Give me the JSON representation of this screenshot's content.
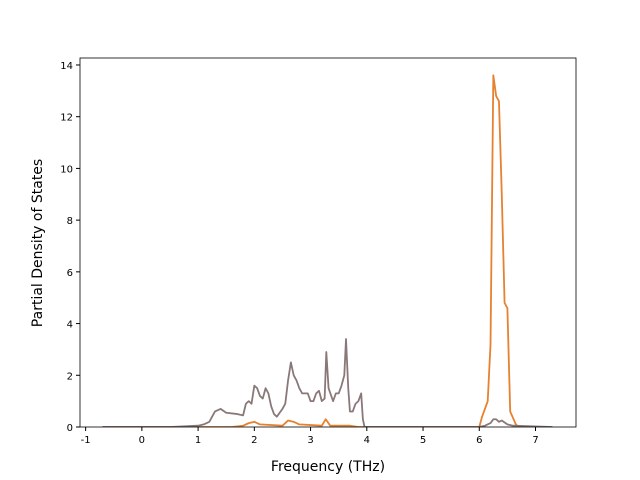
{
  "chart_data": {
    "type": "line",
    "xlabel": "Frequency (THz)",
    "ylabel": "Partial Density of States",
    "xlim": [
      -1.1,
      7.72
    ],
    "ylim": [
      0,
      14.27
    ],
    "xticks": [
      -1,
      0,
      1,
      2,
      3,
      4,
      5,
      6,
      7
    ],
    "yticks": [
      0,
      2,
      4,
      6,
      8,
      10,
      12,
      14
    ],
    "series": [
      {
        "color": "#e6812f",
        "x": [
          -0.7,
          1.6,
          1.8,
          1.9,
          2.0,
          2.1,
          2.5,
          2.6,
          2.7,
          2.8,
          3.2,
          3.27,
          3.35,
          3.7,
          3.85,
          6.0,
          6.05,
          6.15,
          6.2,
          6.25,
          6.3,
          6.35,
          6.4,
          6.45,
          6.5,
          6.55,
          6.65,
          6.7,
          7.3
        ],
        "values": [
          0,
          0,
          0.05,
          0.15,
          0.2,
          0.1,
          0.05,
          0.25,
          0.2,
          0.1,
          0.05,
          0.3,
          0.05,
          0.05,
          0,
          0,
          0.4,
          1,
          3.2,
          13.6,
          12.8,
          12.6,
          9,
          4.8,
          4.6,
          0.6,
          0.1,
          0,
          0
        ]
      },
      {
        "color": "#8a7878",
        "x": [
          -0.7,
          0.5,
          1.0,
          1.1,
          1.2,
          1.3,
          1.4,
          1.5,
          1.7,
          1.8,
          1.85,
          1.9,
          1.95,
          2.0,
          2.05,
          2.1,
          2.15,
          2.2,
          2.25,
          2.3,
          2.35,
          2.4,
          2.5,
          2.55,
          2.6,
          2.65,
          2.7,
          2.75,
          2.8,
          2.85,
          2.95,
          3.0,
          3.05,
          3.1,
          3.15,
          3.2,
          3.25,
          3.28,
          3.32,
          3.4,
          3.45,
          3.5,
          3.55,
          3.6,
          3.63,
          3.67,
          3.7,
          3.75,
          3.8,
          3.85,
          3.9,
          3.93,
          3.96,
          6.0,
          6.1,
          6.2,
          6.25,
          6.3,
          6.35,
          6.4,
          6.5,
          6.6,
          7.3
        ],
        "values": [
          0,
          0,
          0.05,
          0.1,
          0.2,
          0.6,
          0.7,
          0.55,
          0.5,
          0.45,
          0.9,
          1.0,
          0.9,
          1.6,
          1.5,
          1.2,
          1.1,
          1.5,
          1.3,
          0.8,
          0.5,
          0.4,
          0.7,
          0.9,
          1.8,
          2.5,
          2.0,
          1.8,
          1.5,
          1.3,
          1.3,
          1.0,
          1.0,
          1.3,
          1.4,
          1.0,
          1.1,
          2.9,
          1.5,
          1.0,
          1.3,
          1.3,
          1.6,
          2.0,
          3.4,
          1.5,
          0.6,
          0.6,
          0.9,
          1.0,
          1.3,
          0.3,
          0,
          0,
          0.05,
          0.15,
          0.3,
          0.3,
          0.2,
          0.25,
          0.1,
          0.05,
          0
        ]
      }
    ]
  }
}
